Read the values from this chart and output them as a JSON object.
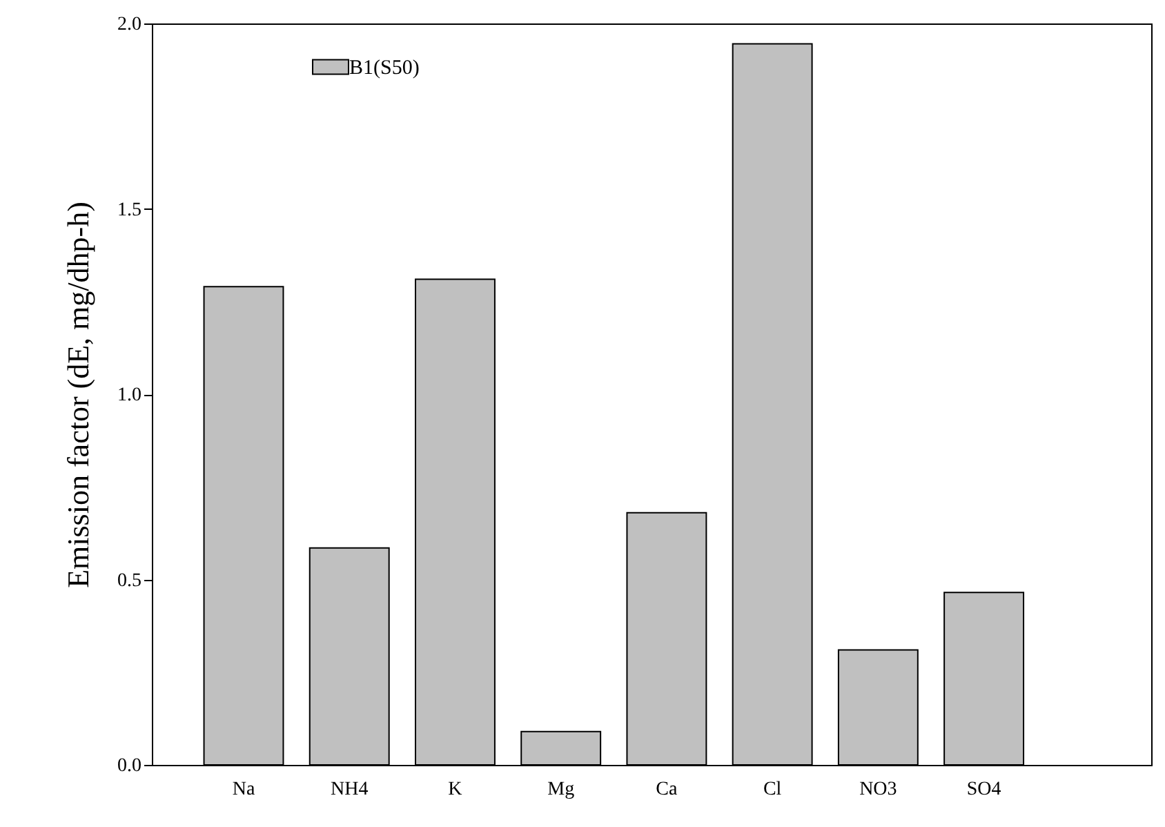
{
  "chart_data": {
    "type": "bar",
    "ylabel": "Emission factor (dE, mg/dhp-h)",
    "categories": [
      "Na",
      "NH4",
      "K",
      "Mg",
      "Ca",
      "Cl",
      "NO3",
      "SO4"
    ],
    "series": [
      {
        "name": "B1(S50)",
        "color": "#c0c0c0",
        "values": [
          1.29,
          0.585,
          1.31,
          0.09,
          0.68,
          1.945,
          0.31,
          0.465
        ]
      }
    ],
    "ylim": [
      0,
      2
    ],
    "yticks": [
      {
        "value": 0,
        "label": "0.0"
      },
      {
        "value": 0.5,
        "label": "0.5"
      },
      {
        "value": 1,
        "label": "1.0"
      },
      {
        "value": 1.5,
        "label": "1.5"
      },
      {
        "value": 2,
        "label": "2.0"
      }
    ],
    "legend": "top left",
    "grid": false
  }
}
